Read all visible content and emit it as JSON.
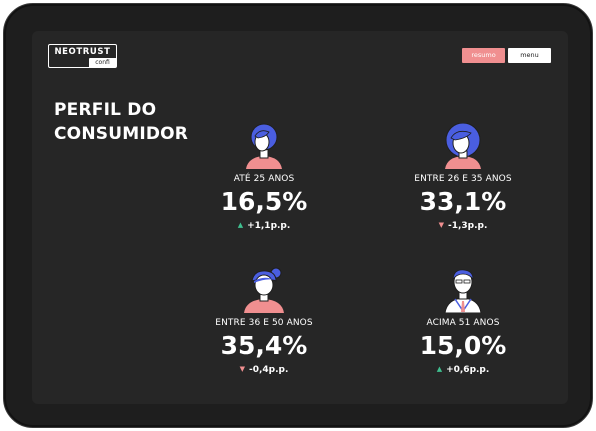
{
  "header": {
    "logo_name": "NEOTRUST",
    "logo_sub": "confi",
    "resumo_label": "resumo",
    "menu_label": "menu"
  },
  "page": {
    "title_line1": "PERFIL DO",
    "title_line2": "CONSUMIDOR"
  },
  "stats": [
    {
      "label": "ATÉ 25 ANOS",
      "value": "16,5%",
      "delta": "+1,1p.p.",
      "trend": "up",
      "trend_color": "#3fbf8f",
      "icon": "young-person-avatar-icon"
    },
    {
      "label": "ENTRE 26 E 35 ANOS",
      "value": "33,1%",
      "delta": "-1,3p.p.",
      "trend": "down",
      "trend_color": "#f08f90",
      "icon": "curly-hair-person-avatar-icon"
    },
    {
      "label": "ENTRE 36 E 50 ANOS",
      "value": "35,4%",
      "delta": "-0,4p.p.",
      "trend": "down",
      "trend_color": "#f08f90",
      "icon": "bun-hair-woman-avatar-icon"
    },
    {
      "label": "ACIMA 51 ANOS",
      "value": "15,0%",
      "delta": "+0,6p.p.",
      "trend": "up",
      "trend_color": "#3fbf8f",
      "icon": "older-man-tie-avatar-icon"
    }
  ],
  "colors": {
    "background": "#262626",
    "accent_pink": "#f08f90",
    "avatar_blue": "#4a5ee0",
    "skin": "#f08f90",
    "up": "#3fbf8f",
    "down": "#f08f90"
  }
}
